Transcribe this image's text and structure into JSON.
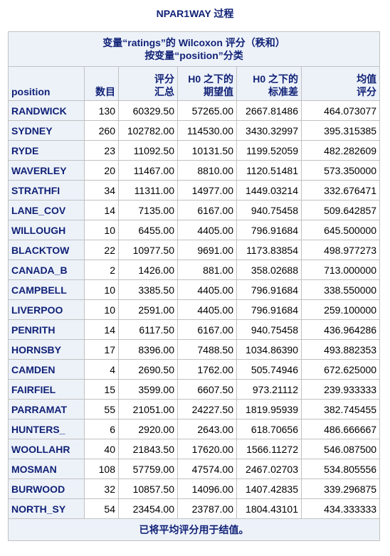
{
  "procedure_title": "NPAR1WAY 过程",
  "caption": {
    "line1": "变量“ratings”的 Wilcoxon 评分（秩和）",
    "line2": "按变量“position”分类"
  },
  "columns": [
    {
      "l1": "",
      "l2": "position"
    },
    {
      "l1": "",
      "l2": "数目"
    },
    {
      "l1": "评分",
      "l2": "汇总"
    },
    {
      "l1": "H0 之下的",
      "l2": "期望值"
    },
    {
      "l1": "H0 之下的",
      "l2": "标准差"
    },
    {
      "l1": "均值",
      "l2": "评分"
    }
  ],
  "rows": [
    [
      "RANDWICK",
      "130",
      "60329.50",
      "57265.00",
      "2667.81486",
      "464.073077"
    ],
    [
      "SYDNEY",
      "260",
      "102782.00",
      "114530.00",
      "3430.32997",
      "395.315385"
    ],
    [
      "RYDE",
      "23",
      "11092.50",
      "10131.50",
      "1199.52059",
      "482.282609"
    ],
    [
      "WAVERLEY",
      "20",
      "11467.00",
      "8810.00",
      "1120.51481",
      "573.350000"
    ],
    [
      "STRATHFI",
      "34",
      "11311.00",
      "14977.00",
      "1449.03214",
      "332.676471"
    ],
    [
      "LANE_COV",
      "14",
      "7135.00",
      "6167.00",
      "940.75458",
      "509.642857"
    ],
    [
      "WILLOUGH",
      "10",
      "6455.00",
      "4405.00",
      "796.91684",
      "645.500000"
    ],
    [
      "BLACKTOW",
      "22",
      "10977.50",
      "9691.00",
      "1173.83854",
      "498.977273"
    ],
    [
      "CANADA_B",
      "2",
      "1426.00",
      "881.00",
      "358.02688",
      "713.000000"
    ],
    [
      "CAMPBELL",
      "10",
      "3385.50",
      "4405.00",
      "796.91684",
      "338.550000"
    ],
    [
      "LIVERPOO",
      "10",
      "2591.00",
      "4405.00",
      "796.91684",
      "259.100000"
    ],
    [
      "PENRITH",
      "14",
      "6117.50",
      "6167.00",
      "940.75458",
      "436.964286"
    ],
    [
      "HORNSBY",
      "17",
      "8396.00",
      "7488.50",
      "1034.86390",
      "493.882353"
    ],
    [
      "CAMDEN",
      "4",
      "2690.50",
      "1762.00",
      "505.74946",
      "672.625000"
    ],
    [
      "FAIRFIEL",
      "15",
      "3599.00",
      "6607.50",
      "973.21112",
      "239.933333"
    ],
    [
      "PARRAMAT",
      "55",
      "21051.00",
      "24227.50",
      "1819.95939",
      "382.745455"
    ],
    [
      "HUNTERS_",
      "6",
      "2920.00",
      "2643.00",
      "618.70656",
      "486.666667"
    ],
    [
      "WOOLLAHR",
      "40",
      "21843.50",
      "17620.00",
      "1566.11272",
      "546.087500"
    ],
    [
      "MOSMAN",
      "108",
      "57759.00",
      "47574.00",
      "2467.02703",
      "534.805556"
    ],
    [
      "BURWOOD",
      "32",
      "10857.50",
      "14096.00",
      "1407.42835",
      "339.296875"
    ],
    [
      "NORTH_SY",
      "54",
      "23454.00",
      "23787.00",
      "1804.43101",
      "434.333333"
    ]
  ],
  "footer": "已将平均评分用于结值。"
}
